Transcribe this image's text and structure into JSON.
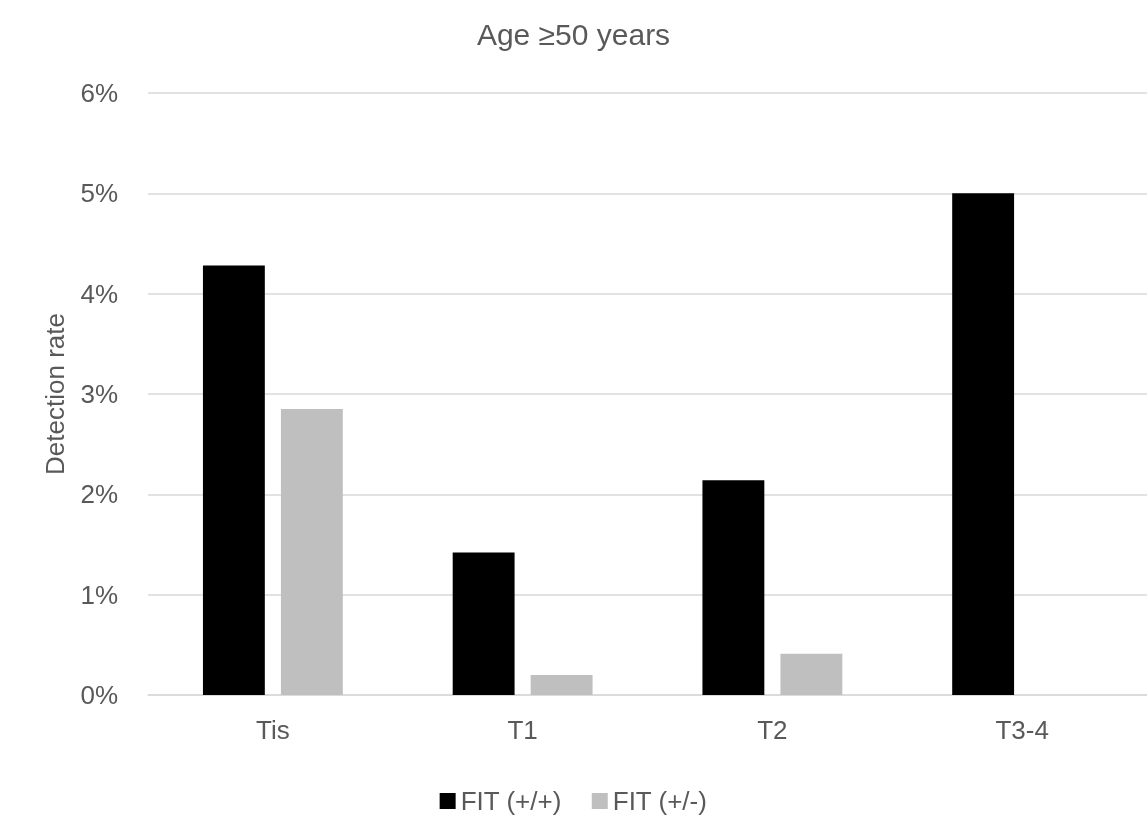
{
  "chart_data": {
    "type": "bar",
    "title": "Age ≥50 years",
    "ylabel": "Detection rate",
    "categories": [
      "Tis",
      "T1",
      "T2",
      "T3-4"
    ],
    "series": [
      {
        "name": "FIT (+/+)",
        "color": "#000000",
        "values": [
          4.28,
          1.42,
          2.14,
          5.0
        ]
      },
      {
        "name": "FIT (+/-)",
        "color": "#bfbfbf",
        "values": [
          2.85,
          0.2,
          0.41,
          0
        ]
      }
    ],
    "ylim": [
      0,
      6
    ],
    "yticks": [
      {
        "value": 0,
        "label": "0%"
      },
      {
        "value": 1,
        "label": "1%"
      },
      {
        "value": 2,
        "label": "2%"
      },
      {
        "value": 3,
        "label": "3%"
      },
      {
        "value": 4,
        "label": "4%"
      },
      {
        "value": 5,
        "label": "5%"
      },
      {
        "value": 6,
        "label": "6%"
      }
    ],
    "grid": "y",
    "legend": "bottom"
  }
}
